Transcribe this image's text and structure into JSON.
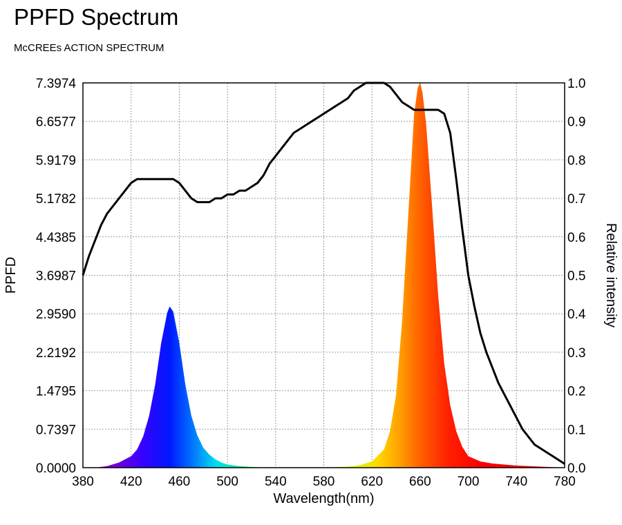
{
  "title": "PPFD Spectrum",
  "subtitle": "McCREEs ACTION SPECTRUM",
  "chart_data": {
    "type": "area",
    "title": "PPFD Spectrum",
    "subtitle": "McCREEs ACTION SPECTRUM",
    "xlabel": "Wavelength(nm)",
    "ylabel": "PPFD",
    "y2label": "Relative intensity",
    "xlim": [
      380,
      780
    ],
    "ylim": [
      0,
      7.3974
    ],
    "y2lim": [
      0,
      1.0
    ],
    "grid": true,
    "x_ticks": [
      "380",
      "420",
      "460",
      "500",
      "540",
      "580",
      "620",
      "660",
      "700",
      "740",
      "780"
    ],
    "y_ticks": [
      "0.0000",
      "0.7397",
      "1.4795",
      "2.2192",
      "2.9590",
      "3.6987",
      "4.4385",
      "5.1782",
      "5.9179",
      "6.6577",
      "7.3974"
    ],
    "y2_ticks": [
      "0.0",
      "0.1",
      "0.2",
      "0.3",
      "0.4",
      "0.5",
      "0.6",
      "0.7",
      "0.8",
      "0.9",
      "1.0"
    ],
    "series": [
      {
        "type": "area",
        "axis": "left",
        "x": [
          380,
          390,
          400,
          410,
          420,
          425,
          430,
          435,
          440,
          445,
          450,
          452,
          455,
          460,
          465,
          470,
          475,
          480,
          485,
          490,
          495,
          500,
          510,
          520,
          530,
          540
        ],
        "y": [
          0.0,
          0.0,
          0.03,
          0.1,
          0.22,
          0.35,
          0.6,
          1.0,
          1.6,
          2.4,
          2.98,
          3.1,
          3.0,
          2.4,
          1.6,
          1.0,
          0.62,
          0.38,
          0.25,
          0.16,
          0.1,
          0.06,
          0.03,
          0.015,
          0.005,
          0.0
        ]
      },
      {
        "type": "area",
        "axis": "left",
        "x": [
          580,
          600,
          610,
          620,
          630,
          635,
          640,
          645,
          650,
          655,
          658,
          660,
          662,
          665,
          670,
          675,
          680,
          685,
          690,
          695,
          700,
          710,
          720,
          740,
          760,
          780
        ],
        "y": [
          0.0,
          0.02,
          0.05,
          0.12,
          0.35,
          0.7,
          1.4,
          2.8,
          4.8,
          6.8,
          7.3,
          7.4,
          7.2,
          6.6,
          5.0,
          3.3,
          2.0,
          1.2,
          0.7,
          0.4,
          0.22,
          0.12,
          0.08,
          0.04,
          0.02,
          0.0
        ]
      },
      {
        "type": "line",
        "axis": "right",
        "x": [
          380,
          385,
          390,
          395,
          400,
          405,
          410,
          415,
          420,
          425,
          430,
          435,
          440,
          445,
          450,
          455,
          460,
          465,
          470,
          475,
          480,
          485,
          490,
          495,
          500,
          505,
          510,
          515,
          520,
          525,
          530,
          535,
          540,
          545,
          550,
          555,
          560,
          565,
          570,
          575,
          580,
          585,
          590,
          595,
          600,
          605,
          610,
          615,
          620,
          625,
          630,
          635,
          640,
          645,
          650,
          655,
          660,
          665,
          670,
          675,
          680,
          685,
          690,
          695,
          700,
          705,
          710,
          715,
          720,
          725,
          730,
          735,
          740,
          745,
          750,
          755,
          760,
          765,
          770,
          775,
          780
        ],
        "y": [
          0.5,
          0.55,
          0.59,
          0.63,
          0.66,
          0.68,
          0.7,
          0.72,
          0.74,
          0.75,
          0.75,
          0.75,
          0.75,
          0.75,
          0.75,
          0.75,
          0.74,
          0.72,
          0.7,
          0.69,
          0.69,
          0.69,
          0.7,
          0.7,
          0.71,
          0.71,
          0.72,
          0.72,
          0.73,
          0.74,
          0.76,
          0.79,
          0.81,
          0.83,
          0.85,
          0.87,
          0.88,
          0.89,
          0.9,
          0.91,
          0.92,
          0.93,
          0.94,
          0.95,
          0.96,
          0.98,
          0.99,
          1.0,
          1.0,
          1.0,
          1.0,
          0.99,
          0.97,
          0.95,
          0.94,
          0.93,
          0.93,
          0.93,
          0.93,
          0.93,
          0.92,
          0.87,
          0.75,
          0.62,
          0.5,
          0.42,
          0.35,
          0.3,
          0.26,
          0.22,
          0.19,
          0.16,
          0.13,
          0.1,
          0.08,
          0.06,
          0.05,
          0.04,
          0.03,
          0.02,
          0.01
        ]
      }
    ]
  }
}
